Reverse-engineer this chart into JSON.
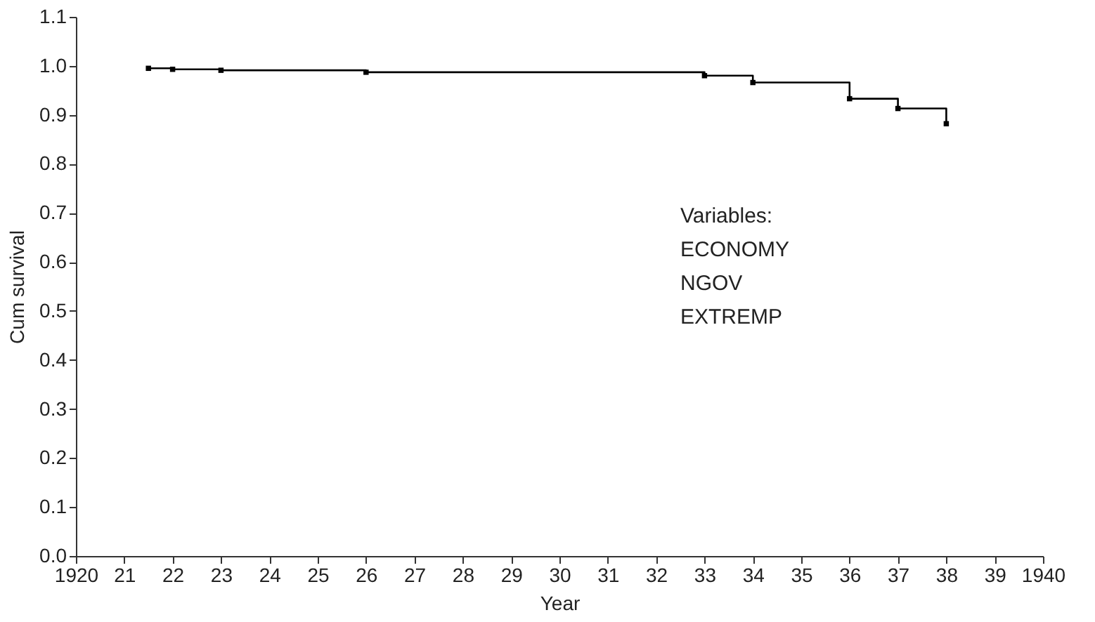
{
  "chart_data": {
    "type": "step",
    "xlabel": "Year",
    "ylabel": "Cum survival",
    "x": [
      1921.5,
      1922,
      1923,
      1926,
      1933,
      1934,
      1936,
      1937,
      1938
    ],
    "values": [
      0.995,
      0.993,
      0.991,
      0.987,
      0.98,
      0.966,
      0.933,
      0.913,
      0.882
    ],
    "color": "#000000",
    "marker": "square",
    "line_style": "solid",
    "xlim": [
      1920,
      1940
    ],
    "xticks": [
      1920,
      {
        "value": 1921,
        "label": "21"
      },
      {
        "value": 1922,
        "label": "22"
      },
      {
        "value": 1923,
        "label": "23"
      },
      {
        "value": 1924,
        "label": "24"
      },
      {
        "value": 1925,
        "label": "25"
      },
      {
        "value": 1926,
        "label": "26"
      },
      {
        "value": 1927,
        "label": "27"
      },
      {
        "value": 1928,
        "label": "28"
      },
      {
        "value": 1929,
        "label": "29"
      },
      {
        "value": 1930,
        "label": "30"
      },
      {
        "value": 1931,
        "label": "31"
      },
      {
        "value": 1932,
        "label": "32"
      },
      {
        "value": 1933,
        "label": "33"
      },
      {
        "value": 1934,
        "label": "34"
      },
      {
        "value": 1935,
        "label": "35"
      },
      {
        "value": 1936,
        "label": "36"
      },
      {
        "value": 1937,
        "label": "37"
      },
      {
        "value": 1938,
        "label": "38"
      },
      {
        "value": 1939,
        "label": "39"
      },
      1940
    ],
    "ylim": [
      0,
      1.1
    ],
    "yticks": [
      {
        "value": 0,
        "label": "0.0"
      },
      0.1,
      0.2,
      0.3,
      0.4,
      0.5,
      0.6,
      0.7,
      0.8,
      0.9,
      {
        "value": 1,
        "label": "1.0"
      },
      1.1
    ],
    "annotations": [
      "Variables:",
      "ECONOMY",
      "NGOV",
      "EXTREMP"
    ]
  }
}
